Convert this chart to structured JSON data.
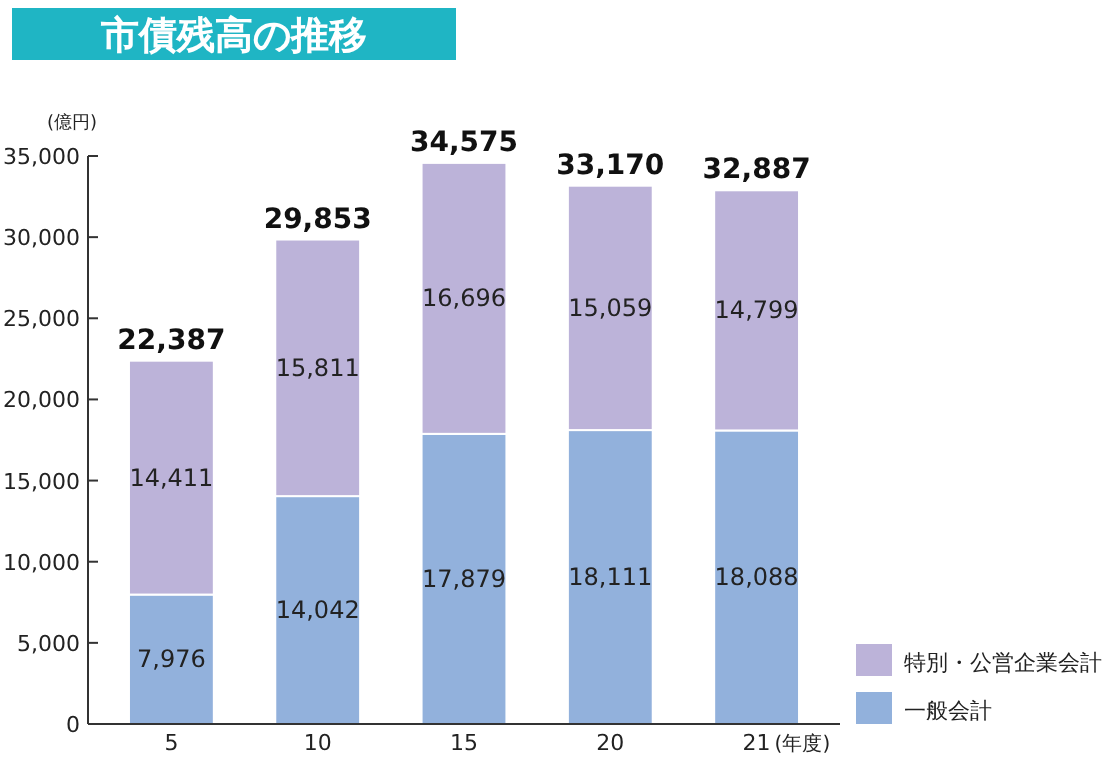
{
  "chart_data": {
    "type": "bar",
    "title": "市債残高の推移",
    "ylabel": "(億円)",
    "xlabel": "(年度)",
    "categories": [
      "5",
      "10",
      "15",
      "20",
      "21"
    ],
    "stacked": true,
    "series": [
      {
        "name": "一般会計",
        "color": "#92b1dc",
        "values": [
          7976,
          14042,
          17879,
          18111,
          18088
        ],
        "value_labels": [
          "7,976",
          "14,042",
          "17,879",
          "18,111",
          "18,088"
        ]
      },
      {
        "name": "特別・公営企業会計",
        "color": "#bcb3d9",
        "values": [
          14411,
          15811,
          16696,
          15059,
          14799
        ],
        "value_labels": [
          "14,411",
          "15,811",
          "16,696",
          "15,059",
          "14,799"
        ]
      }
    ],
    "ylim": [
      0,
      35000
    ],
    "yticks": [
      {
        "value": 0,
        "label": "0"
      },
      {
        "value": 5000,
        "label": "5,000"
      },
      {
        "value": 10000,
        "label": "10,000"
      },
      {
        "value": 15000,
        "label": "15,000"
      },
      {
        "value": 20000,
        "label": "20,000"
      },
      {
        "value": 25000,
        "label": "25,000"
      },
      {
        "value": 30000,
        "label": "30,000"
      },
      {
        "value": 35000,
        "label": "35,000"
      }
    ],
    "totals": [
      "22,387",
      "29,853",
      "34,575",
      "33,170",
      "32,887"
    ],
    "grid": false,
    "legend": "bottom right"
  }
}
